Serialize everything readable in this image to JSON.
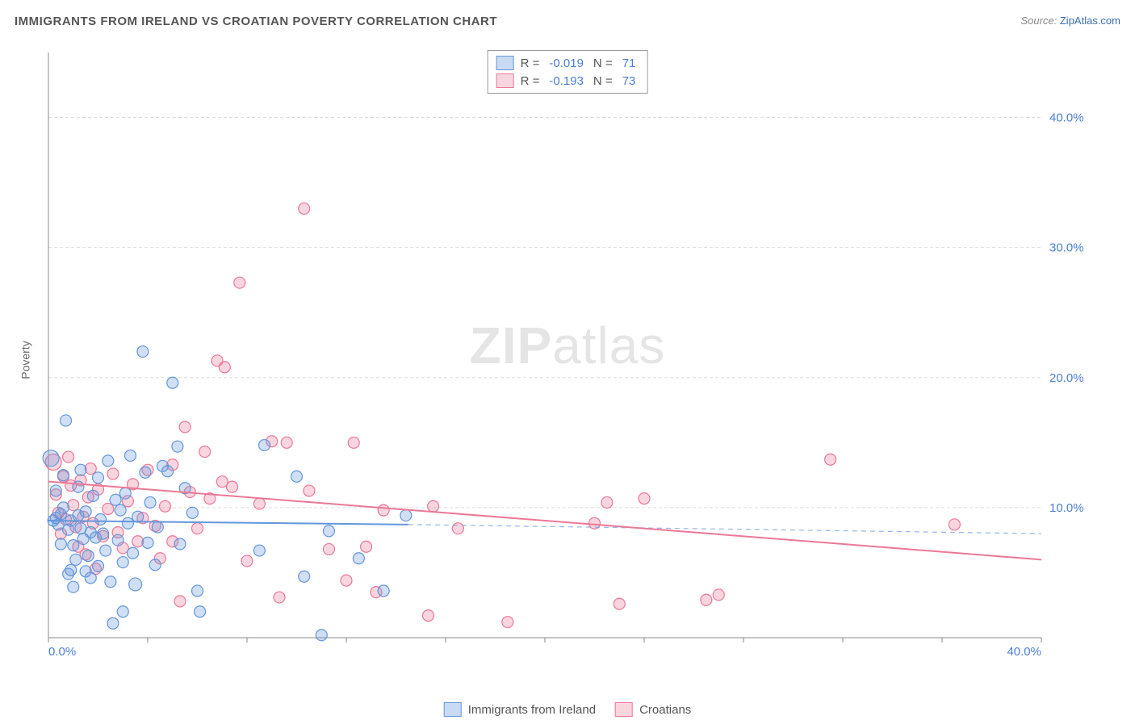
{
  "title": "IMMIGRANTS FROM IRELAND VS CROATIAN POVERTY CORRELATION CHART",
  "source_label": "Source: ",
  "source_name": "ZipAtlas.com",
  "y_axis_label": "Poverty",
  "watermark_zip": "ZIP",
  "watermark_atlas": "atlas",
  "chart": {
    "type": "scatter",
    "xlim": [
      0,
      40
    ],
    "ylim": [
      0,
      45
    ],
    "x_ticks": [
      0,
      4,
      8,
      12,
      16,
      20,
      24,
      28,
      32,
      36,
      40
    ],
    "y_ticks": [
      10,
      20,
      30,
      40
    ],
    "x_tick_labels": {
      "0": "0.0%",
      "40": "40.0%"
    },
    "y_tick_labels": {
      "10": "10.0%",
      "20": "20.0%",
      "30": "30.0%",
      "40": "40.0%"
    },
    "background_color": "#ffffff",
    "grid_color": "#dddddd",
    "axis_color": "#888888",
    "tick_label_color": "#4a7fd4",
    "tick_label_fontsize": 15,
    "marker_radius": 7,
    "marker_radius_large": 10,
    "marker_stroke_width": 1.2,
    "marker_fill_opacity": 0.3,
    "series": [
      {
        "name": "Immigrants from Ireland",
        "color_stroke": "#6496dc",
        "color_fill": "#6496dc",
        "R": "-0.019",
        "N": "71",
        "trend": {
          "x1": 0,
          "y1": 9.0,
          "x2": 14.5,
          "y2": 8.7,
          "dash_x2": 40,
          "dash_y2": 8.0,
          "width": 2
        },
        "points": [
          [
            0.1,
            13.8,
            10
          ],
          [
            0.2,
            9.0
          ],
          [
            0.3,
            9.2
          ],
          [
            0.3,
            11.3
          ],
          [
            0.4,
            8.7
          ],
          [
            0.5,
            7.2
          ],
          [
            0.5,
            9.5
          ],
          [
            0.6,
            10.0
          ],
          [
            0.6,
            12.5
          ],
          [
            0.7,
            16.7
          ],
          [
            0.8,
            8.3
          ],
          [
            0.8,
            4.9
          ],
          [
            0.9,
            5.2
          ],
          [
            0.9,
            9.0
          ],
          [
            1.0,
            7.1
          ],
          [
            1.0,
            3.9
          ],
          [
            1.1,
            6.0
          ],
          [
            1.2,
            9.4
          ],
          [
            1.2,
            11.6
          ],
          [
            1.3,
            8.4
          ],
          [
            1.3,
            12.9
          ],
          [
            1.4,
            7.6
          ],
          [
            1.5,
            5.1
          ],
          [
            1.5,
            9.7
          ],
          [
            1.6,
            6.3
          ],
          [
            1.7,
            4.6
          ],
          [
            1.7,
            8.1
          ],
          [
            1.8,
            10.9
          ],
          [
            1.9,
            7.7
          ],
          [
            2.0,
            12.3
          ],
          [
            2.0,
            5.5
          ],
          [
            2.1,
            9.1
          ],
          [
            2.2,
            8.0
          ],
          [
            2.3,
            6.7
          ],
          [
            2.4,
            13.6
          ],
          [
            2.5,
            4.3
          ],
          [
            2.6,
            1.1
          ],
          [
            2.7,
            10.6
          ],
          [
            2.8,
            7.5
          ],
          [
            2.9,
            9.8
          ],
          [
            3.0,
            5.8
          ],
          [
            3.0,
            2.0
          ],
          [
            3.1,
            11.1
          ],
          [
            3.2,
            8.8
          ],
          [
            3.3,
            14.0
          ],
          [
            3.4,
            6.5
          ],
          [
            3.5,
            4.1,
            8
          ],
          [
            3.6,
            9.3
          ],
          [
            3.8,
            22.0
          ],
          [
            3.9,
            12.7
          ],
          [
            4.0,
            7.3
          ],
          [
            4.1,
            10.4
          ],
          [
            4.3,
            5.6
          ],
          [
            4.4,
            8.5
          ],
          [
            4.6,
            13.2
          ],
          [
            4.8,
            12.8
          ],
          [
            5.0,
            19.6
          ],
          [
            5.2,
            14.7
          ],
          [
            5.3,
            7.2
          ],
          [
            5.5,
            11.5
          ],
          [
            5.8,
            9.6
          ],
          [
            6.0,
            3.6
          ],
          [
            6.1,
            2.0
          ],
          [
            8.5,
            6.7
          ],
          [
            8.7,
            14.8
          ],
          [
            10.0,
            12.4
          ],
          [
            10.3,
            4.7
          ],
          [
            11.0,
            0.2
          ],
          [
            11.3,
            8.2
          ],
          [
            12.5,
            6.1
          ],
          [
            13.5,
            3.6
          ],
          [
            14.4,
            9.4
          ]
        ]
      },
      {
        "name": "Croatians",
        "color_stroke": "#eb7896",
        "color_fill": "#eb7896",
        "R": "-0.193",
        "N": "73",
        "trend": {
          "x1": 0,
          "y1": 12.0,
          "x2": 40,
          "y2": 6.0,
          "width": 2
        },
        "points": [
          [
            0.2,
            13.5,
            10
          ],
          [
            0.3,
            11.0
          ],
          [
            0.4,
            9.6
          ],
          [
            0.5,
            8.0
          ],
          [
            0.6,
            12.4
          ],
          [
            0.7,
            9.1
          ],
          [
            0.8,
            13.9
          ],
          [
            0.9,
            11.7
          ],
          [
            1.0,
            10.2
          ],
          [
            1.1,
            8.5
          ],
          [
            1.2,
            7.0
          ],
          [
            1.3,
            12.1
          ],
          [
            1.4,
            9.3
          ],
          [
            1.5,
            6.4
          ],
          [
            1.6,
            10.8
          ],
          [
            1.7,
            13.0
          ],
          [
            1.8,
            8.8
          ],
          [
            1.9,
            5.3
          ],
          [
            2.0,
            11.4
          ],
          [
            2.2,
            7.8
          ],
          [
            2.4,
            9.9
          ],
          [
            2.6,
            12.6
          ],
          [
            2.8,
            8.1
          ],
          [
            3.0,
            6.9
          ],
          [
            3.2,
            10.5
          ],
          [
            3.4,
            11.8
          ],
          [
            3.6,
            7.4
          ],
          [
            3.8,
            9.2
          ],
          [
            4.0,
            12.9
          ],
          [
            4.3,
            8.6
          ],
          [
            4.5,
            6.1
          ],
          [
            4.7,
            10.1
          ],
          [
            5.0,
            13.3
          ],
          [
            5.0,
            7.4
          ],
          [
            5.3,
            2.8
          ],
          [
            5.5,
            16.2
          ],
          [
            5.7,
            11.2
          ],
          [
            6.0,
            8.4
          ],
          [
            6.3,
            14.3
          ],
          [
            6.5,
            10.7
          ],
          [
            6.8,
            21.3
          ],
          [
            7.0,
            12.0
          ],
          [
            7.1,
            20.8
          ],
          [
            7.4,
            11.6
          ],
          [
            7.7,
            27.3
          ],
          [
            8.0,
            5.9
          ],
          [
            8.5,
            10.3
          ],
          [
            9.0,
            15.1
          ],
          [
            9.3,
            3.1
          ],
          [
            9.6,
            15.0
          ],
          [
            10.3,
            33.0
          ],
          [
            10.5,
            11.3
          ],
          [
            11.3,
            6.8
          ],
          [
            12.0,
            4.4
          ],
          [
            12.3,
            15.0
          ],
          [
            12.8,
            7.0
          ],
          [
            13.2,
            3.5
          ],
          [
            13.5,
            9.8
          ],
          [
            15.3,
            1.7
          ],
          [
            15.5,
            10.1
          ],
          [
            16.5,
            8.4
          ],
          [
            18.5,
            1.2
          ],
          [
            22.0,
            8.8
          ],
          [
            22.5,
            10.4
          ],
          [
            23.0,
            2.6
          ],
          [
            24.0,
            10.7
          ],
          [
            26.5,
            2.9
          ],
          [
            27.0,
            3.3
          ],
          [
            31.5,
            13.7
          ],
          [
            36.5,
            8.7
          ]
        ]
      }
    ]
  },
  "legend_top_labels": {
    "R": "R =",
    "N": "N ="
  },
  "legend_bottom": [
    {
      "swatch": "blue",
      "label": "Immigrants from Ireland"
    },
    {
      "swatch": "pink",
      "label": "Croatians"
    }
  ]
}
